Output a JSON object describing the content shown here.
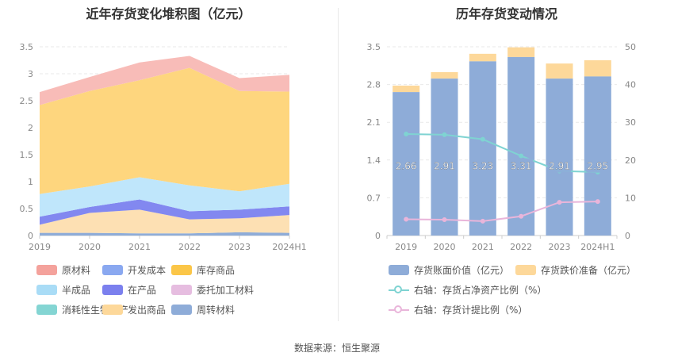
{
  "left": {
    "title": "近年存货变化堆积图（亿元）"
  },
  "right": {
    "title": "历年存货变动情况"
  },
  "source": "数据来源：恒生聚源",
  "chart_data": [
    {
      "type": "area",
      "title": "近年存货变化堆积图（亿元）",
      "categories": [
        "2019",
        "2020",
        "2021",
        "2022",
        "2023",
        "2024H1"
      ],
      "ylim": [
        0,
        3.5
      ],
      "yticks": [
        0,
        0.5,
        1,
        1.5,
        2,
        2.5,
        3,
        3.5
      ],
      "stack_order": [
        "周转材料",
        "发出商品",
        "消耗性生物资产",
        "委托加工材料",
        "在产品",
        "半成品",
        "库存商品",
        "开发成本",
        "原材料"
      ],
      "series": [
        {
          "name": "周转材料",
          "color": "#8eacd8",
          "values": [
            0.05,
            0.05,
            0.04,
            0.04,
            0.06,
            0.05
          ]
        },
        {
          "name": "发出商品",
          "color": "#fde0b3",
          "values": [
            0.15,
            0.37,
            0.44,
            0.26,
            0.26,
            0.33
          ]
        },
        {
          "name": "消耗性生物资产",
          "color": "#8dd8d6",
          "values": [
            0,
            0,
            0,
            0,
            0,
            0
          ]
        },
        {
          "name": "委托加工材料",
          "color": "#e9bde0",
          "values": [
            0,
            0,
            0,
            0,
            0,
            0
          ]
        },
        {
          "name": "在产品",
          "color": "#8288f0",
          "values": [
            0.15,
            0.11,
            0.19,
            0.15,
            0.16,
            0.16
          ]
        },
        {
          "name": "半成品",
          "color": "#bfe6fb",
          "values": [
            0.42,
            0.38,
            0.41,
            0.48,
            0.34,
            0.42
          ]
        },
        {
          "name": "库存商品",
          "color": "#fed67e",
          "values": [
            1.65,
            1.77,
            1.8,
            2.18,
            1.86,
            1.71
          ]
        },
        {
          "name": "开发成本",
          "color": "#8aa8f0",
          "values": [
            0,
            0,
            0,
            0,
            0,
            0
          ]
        },
        {
          "name": "原材料",
          "color": "#f8bcb8",
          "values": [
            0.24,
            0.26,
            0.33,
            0.22,
            0.24,
            0.31
          ]
        }
      ],
      "legend": [
        {
          "name": "原材料",
          "color": "#f4a29c"
        },
        {
          "name": "开发成本",
          "color": "#8aa8f0"
        },
        {
          "name": "库存商品",
          "color": "#fbc648"
        },
        {
          "name": "半成品",
          "color": "#a9dcf6"
        },
        {
          "name": "在产品",
          "color": "#7b80ee"
        },
        {
          "name": "委托加工材料",
          "color": "#e6bde0"
        },
        {
          "name": "消耗性生物资产",
          "color": "#84d5d3"
        },
        {
          "name": "发出商品",
          "color": "#fdd89a"
        },
        {
          "name": "周转材料",
          "color": "#8eacd8"
        }
      ]
    },
    {
      "type": "bar",
      "title": "历年存货变动情况",
      "categories": [
        "2019",
        "2020",
        "2021",
        "2022",
        "2023",
        "2024H1"
      ],
      "ylim": [
        0,
        3.5
      ],
      "yticks": [
        0,
        0.7,
        1.4,
        2.1,
        2.8,
        3.5
      ],
      "y2lim": [
        0,
        50
      ],
      "y2ticks": [
        0,
        10,
        20,
        30,
        40,
        50
      ],
      "series": [
        {
          "name": "存货账面价值（亿元）",
          "color": "#8eacd8",
          "values": [
            2.66,
            2.91,
            3.23,
            3.31,
            2.91,
            2.95
          ],
          "labels": [
            "2.66",
            "2.91",
            "3.23",
            "3.31",
            "2.91",
            "2.95"
          ]
        },
        {
          "name": "存货跌价准备（亿元）",
          "color": "#fdd89a",
          "values": [
            0.12,
            0.12,
            0.14,
            0.18,
            0.28,
            0.3
          ]
        },
        {
          "name": "右轴：存货占净资产比例（%）",
          "color": "#7fd3d2",
          "axis": "right",
          "values": [
            26.9,
            26.7,
            25.5,
            21.1,
            17.1,
            16.8
          ]
        },
        {
          "name": "右轴：存货计提比例（%）",
          "color": "#e9b5da",
          "axis": "right",
          "values": [
            4.3,
            4.2,
            3.8,
            5.1,
            8.8,
            9.0
          ]
        }
      ]
    }
  ]
}
